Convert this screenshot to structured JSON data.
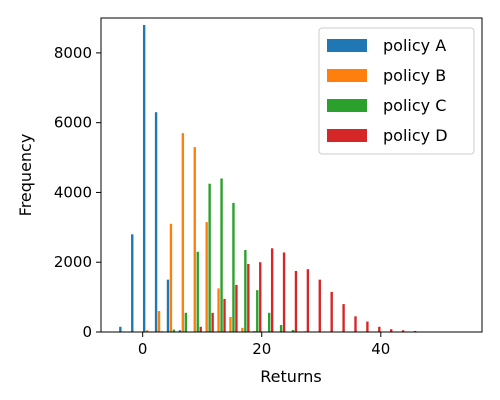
{
  "chart_data": {
    "type": "bar",
    "xlabel": "Returns",
    "ylabel": "Frequency",
    "xlim": [
      -7,
      57
    ],
    "ylim": [
      0,
      9000
    ],
    "xticks": [
      0,
      20,
      40
    ],
    "yticks": [
      0,
      2000,
      4000,
      6000,
      8000
    ],
    "grid": false,
    "legend_position": "top-right",
    "bin_width": 2,
    "series": [
      {
        "name": "policy A",
        "color": "#1f77b4",
        "bins": [
          -4,
          -2,
          0,
          2,
          4,
          6
        ],
        "values": [
          150,
          2800,
          8800,
          6300,
          1500,
          50
        ]
      },
      {
        "name": "policy B",
        "color": "#ff7f0e",
        "bins": [
          0,
          2,
          4,
          6,
          8,
          10,
          12,
          14,
          16,
          18
        ],
        "values": [
          50,
          600,
          3100,
          5700,
          5300,
          3150,
          1250,
          430,
          120,
          30
        ]
      },
      {
        "name": "policy C",
        "color": "#2ca02c",
        "bins": [
          2,
          4,
          6,
          8,
          10,
          12,
          14,
          16,
          18,
          20,
          22,
          24,
          26
        ],
        "values": [
          20,
          70,
          550,
          2300,
          4250,
          4400,
          3700,
          2350,
          1200,
          550,
          200,
          60,
          20
        ]
      },
      {
        "name": "policy D",
        "color": "#d62728",
        "bins": [
          8,
          10,
          12,
          14,
          16,
          18,
          20,
          22,
          24,
          26,
          28,
          30,
          32,
          34,
          36,
          38,
          40,
          42,
          44,
          46,
          48
        ],
        "values": [
          150,
          550,
          950,
          1350,
          1950,
          2000,
          2400,
          2280,
          1750,
          1800,
          1500,
          1150,
          800,
          450,
          300,
          150,
          80,
          50,
          30,
          15,
          10
        ]
      }
    ]
  }
}
